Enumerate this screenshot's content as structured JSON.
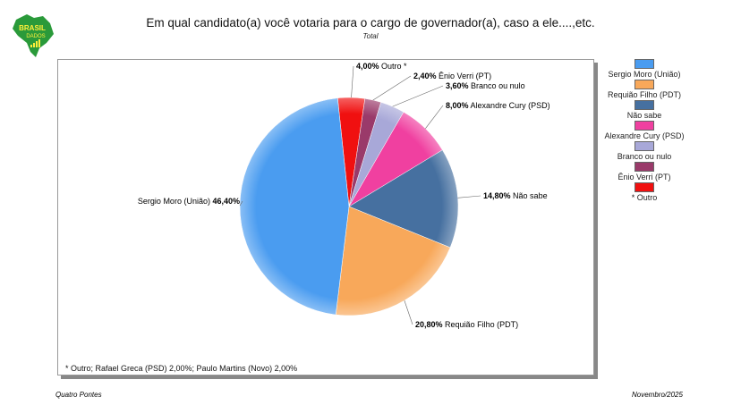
{
  "logo": {
    "line1": "BRASIL",
    "line2": "DADOS"
  },
  "footer": {
    "source": "Quatro Pontes",
    "date": "Novembro/2025"
  },
  "chart_data": {
    "type": "pie",
    "title": "Em qual candidato(a) você votaria para o cargo de governador(a), caso a ele....,etc.",
    "subtitle": "Total",
    "note": "* Outro; Rafael Greca (PSD) 2,00%; Paulo Martins (Novo) 2,00%",
    "legend_position": "right",
    "slices": [
      {
        "name": "Sergio Moro (União)",
        "value": 46.4,
        "label": "46,40%",
        "color": "#4a9cf0"
      },
      {
        "name": "Requião Filho (PDT)",
        "value": 20.8,
        "label": "20,80%",
        "color": "#f8a85a"
      },
      {
        "name": "Não sabe",
        "value": 14.8,
        "label": "14,80%",
        "color": "#4670a0"
      },
      {
        "name": "Alexandre Cury (PSD)",
        "value": 8.0,
        "label": "8,00%",
        "color": "#f040a0"
      },
      {
        "name": "Branco ou nulo",
        "value": 3.6,
        "label": "3,60%",
        "color": "#a8a8d8"
      },
      {
        "name": "Ênio Verri (PT)",
        "value": 2.4,
        "label": "2,40%",
        "color": "#9a3a6a"
      },
      {
        "name": "Outro *",
        "legend": "* Outro",
        "value": 4.0,
        "label": "4,00%",
        "color": "#f01010"
      }
    ]
  }
}
